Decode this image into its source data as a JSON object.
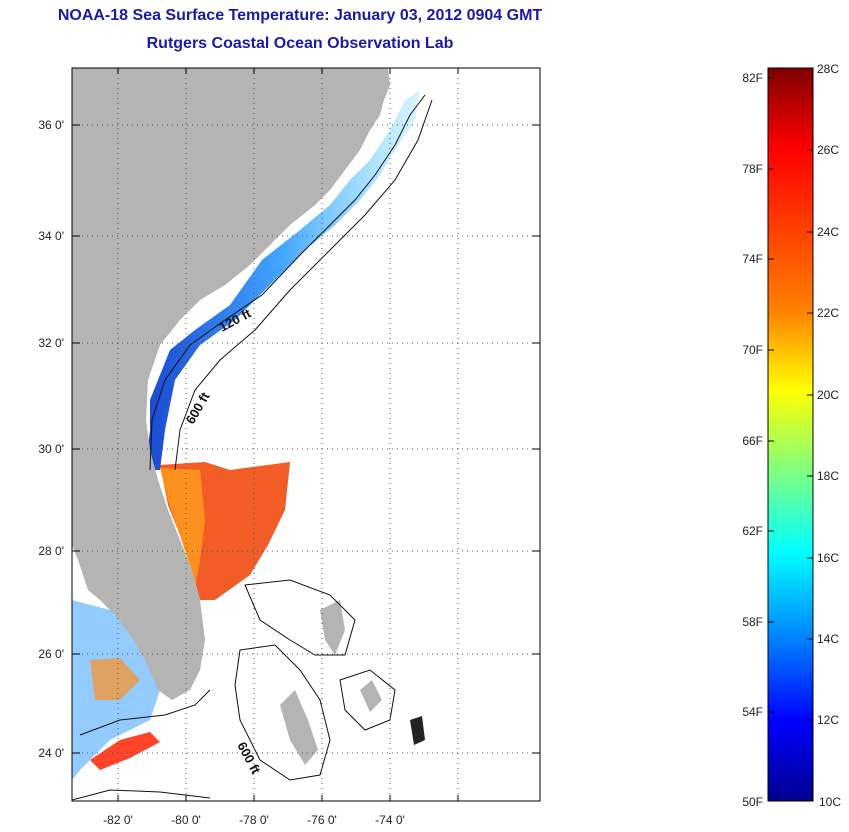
{
  "title": {
    "line1": "NOAA-18 Sea Surface Temperature:  January 03, 2012 0904 GMT",
    "line2": "Rutgers Coastal Ocean Observation Lab"
  },
  "map": {
    "lat_labels": [
      "36 0'",
      "34 0'",
      "32 0'",
      "30 0'",
      "28 0'",
      "26 0'",
      "24 0'"
    ],
    "lon_labels": [
      "-82 0'",
      "-80 0'",
      "-78 0'",
      "-76 0'",
      "-74 0'"
    ],
    "contour_labels": [
      "120 ft",
      "600 ft",
      "600 ft"
    ],
    "land_color": "#b4b4b4",
    "ocean_nodata_color": "#ffffff"
  },
  "colorbar": {
    "fahrenheit_labels": [
      "82F",
      "78F",
      "74F",
      "70F",
      "66F",
      "62F",
      "58F",
      "54F",
      "50F"
    ],
    "celsius_labels": [
      "28C",
      "26C",
      "24C",
      "22C",
      "20C",
      "18C",
      "16C",
      "14C",
      "12C",
      "10C"
    ],
    "colors": [
      "#7f0000",
      "#ff0000",
      "#ff8000",
      "#ffff00",
      "#80ff80",
      "#00ffff",
      "#0080ff",
      "#0000ff",
      "#00008f"
    ]
  }
}
